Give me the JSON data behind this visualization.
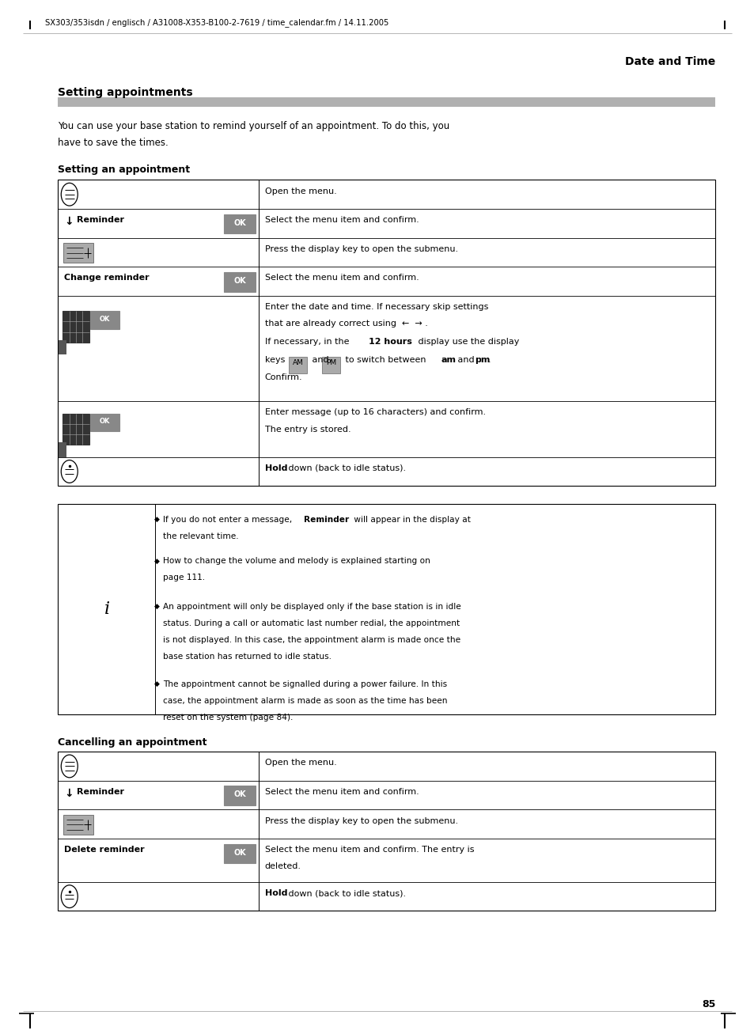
{
  "page_width": 9.54,
  "page_height": 13.07,
  "dpi": 100,
  "bg_color": "#ffffff",
  "header_text": "SX303/353isdn / englisch / A31008-X353-B100-2-7619 / time_calendar.fm / 14.11.2005",
  "section_title": "Date and Time",
  "main_title": "Setting appointments",
  "intro_line1": "You can use your base station to remind yourself of an appointment. To do this, you",
  "intro_line2": "have to save the times.",
  "subsection1": "Setting an appointment",
  "subsection2": "Cancelling an appointment",
  "page_number": "85",
  "gray_bar_color": "#b0b0b0",
  "ok_bg": "#888888",
  "ok_text": "#ffffff",
  "table_line_color": "#000000",
  "icon_dark": "#333333",
  "icon_mid": "#666666",
  "icon_light": "#aaaaaa"
}
